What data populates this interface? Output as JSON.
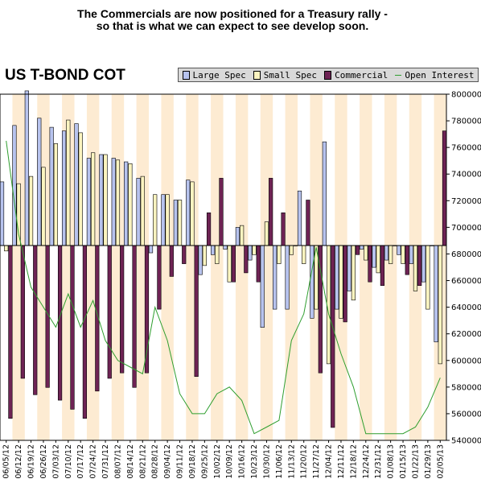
{
  "annotation": {
    "line1": "The Commercials are now positioned for a Treasury rally -",
    "line2": "so that is what we can expect to see develop soon."
  },
  "chart_data": {
    "type": "bar",
    "title": "US T-BOND COT",
    "categories": [
      "06/05/12",
      "06/12/12",
      "06/19/12",
      "06/26/12",
      "07/03/12",
      "07/10/12",
      "07/17/12",
      "07/24/12",
      "07/31/12",
      "08/07/12",
      "08/14/12",
      "08/21/12",
      "08/28/12",
      "09/04/12",
      "09/11/12",
      "09/18/12",
      "09/25/12",
      "10/02/12",
      "10/09/12",
      "10/16/12",
      "10/23/12",
      "10/30/12",
      "11/06/12",
      "11/13/12",
      "11/20/12",
      "11/27/12",
      "12/04/12",
      "12/11/12",
      "12/18/12",
      "12/24/12",
      "12/31/12",
      "01/08/13",
      "01/15/13",
      "01/22/13",
      "01/29/13",
      "02/05/13"
    ],
    "y_axis_right": {
      "label": "Open Interest",
      "range": [
        540000,
        800000
      ],
      "ticks": [
        "800000",
        "780000",
        "760000",
        "740000",
        "720000",
        "700000",
        "680000",
        "660000",
        "640000",
        "620000",
        "600000",
        "580000",
        "560000",
        "540000"
      ]
    },
    "series": [
      {
        "name": "Large Spec",
        "color": "#b7c3ee",
        "values": [
          35000,
          66000,
          85000,
          70000,
          65000,
          63000,
          67000,
          48000,
          50000,
          48000,
          46000,
          37000,
          -4000,
          28000,
          25000,
          36000,
          -16000,
          -5000,
          -2000,
          10000,
          -8000,
          -45000,
          -35000,
          -35000,
          30000,
          -40000,
          57000,
          -35000,
          -25000,
          -2000,
          -12000,
          -8000,
          -5000,
          -10000,
          -20000,
          -53000
        ]
      },
      {
        "name": "Small Spec",
        "color": "#fbf4c0",
        "values": [
          -3000,
          34000,
          38000,
          43000,
          56000,
          69000,
          62000,
          51000,
          50000,
          47000,
          45000,
          38000,
          28000,
          28000,
          25000,
          35000,
          -11000,
          -10000,
          -20000,
          11000,
          -5000,
          13000,
          -10000,
          -5000,
          -10000,
          -35000,
          -65000,
          -40000,
          -30000,
          -8000,
          -15000,
          -10000,
          -10000,
          -25000,
          -35000,
          -65000
        ]
      },
      {
        "name": "Commercial",
        "color": "#6e2354",
        "values": [
          -95000,
          -73000,
          -82000,
          -78000,
          -85000,
          -90000,
          -95000,
          -80000,
          -73000,
          -70000,
          -78000,
          -70000,
          -35000,
          -17000,
          -10000,
          -72000,
          18000,
          37000,
          -20000,
          -15000,
          -20000,
          37000,
          18000,
          0,
          25000,
          -70000,
          -100000,
          -42000,
          -5000,
          -20000,
          -22000,
          0,
          -16000,
          -22000,
          0,
          63000
        ]
      },
      {
        "name": "Open Interest",
        "color": "#2e9e2e",
        "type": "line",
        "values": [
          765000,
          695000,
          655000,
          640000,
          625000,
          650000,
          625000,
          645000,
          615000,
          600000,
          595000,
          590000,
          640000,
          615000,
          575000,
          560000,
          560000,
          575000,
          580000,
          570000,
          545000,
          550000,
          555000,
          615000,
          635000,
          685000,
          635000,
          605000,
          580000,
          545000,
          545000,
          545000,
          545000,
          550000,
          565000,
          587000
        ]
      }
    ],
    "legend_position": "top-right",
    "grid": false
  }
}
